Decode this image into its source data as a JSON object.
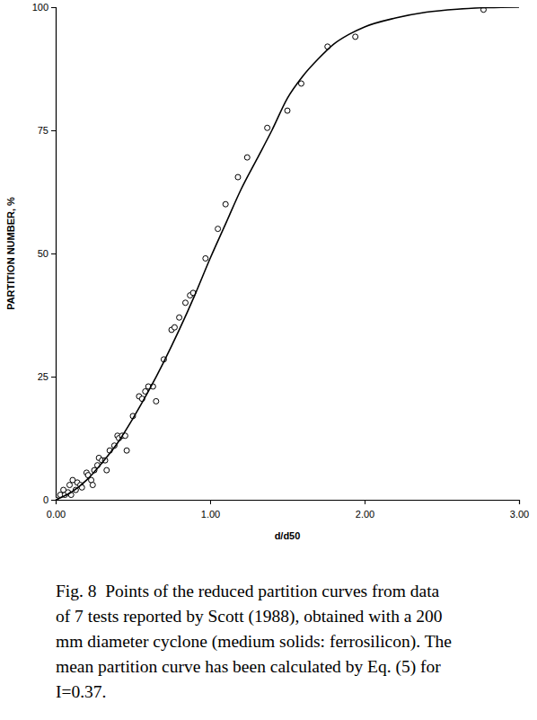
{
  "chart_data": {
    "type": "scatter",
    "x_label": "d/d50",
    "y_label": "PARTITION NUMBER, %",
    "caption": [
      "Fig. 8  Points of the reduced partition curves from data",
      "of 7 tests reported by Scott (1988), obtained with a 200",
      "mm diameter cyclone (medium solids: ferrosilicon). The",
      "mean partition curve has been calculated by Eq. (5) for",
      "I=0.37."
    ],
    "xlim": [
      0,
      3
    ],
    "ylim": [
      0,
      100
    ],
    "xticks": [
      {
        "value": 0,
        "label": "0.00"
      },
      {
        "value": 1,
        "label": "1.00"
      },
      {
        "value": 2,
        "label": "2.00"
      },
      {
        "value": 3,
        "label": "3.00"
      }
    ],
    "yticks": [
      0,
      25,
      50,
      75,
      100
    ],
    "grid": false,
    "series": [
      {
        "type": "scatter",
        "marker": "circle",
        "color": "#000000",
        "x": [
          0.0,
          0.03,
          0.05,
          0.06,
          0.08,
          0.09,
          0.1,
          0.11,
          0.13,
          0.14,
          0.16,
          0.17,
          0.2,
          0.21,
          0.23,
          0.24,
          0.25,
          0.27,
          0.28,
          0.3,
          0.32,
          0.33,
          0.35,
          0.38,
          0.4,
          0.41,
          0.43,
          0.45,
          0.46,
          0.5,
          0.54,
          0.56,
          0.58,
          0.6,
          0.63,
          0.65,
          0.7,
          0.75,
          0.77,
          0.8,
          0.84,
          0.87,
          0.89,
          0.97,
          1.05,
          1.1,
          1.18,
          1.24,
          1.37,
          1.5,
          1.59,
          1.76,
          1.94,
          2.77
        ],
        "values": [
          0,
          1,
          2,
          1,
          1.5,
          3,
          1,
          4,
          2,
          3.5,
          3,
          2.5,
          5.5,
          5,
          4,
          3,
          6,
          7,
          8.5,
          8,
          8,
          6,
          10,
          11,
          13,
          12.5,
          13,
          13,
          10,
          17,
          21,
          20.5,
          22,
          23,
          23,
          20,
          28.5,
          34.5,
          35,
          37,
          40,
          41.5,
          42,
          49,
          55,
          60,
          65.5,
          69.5,
          75.5,
          79,
          84.5,
          92,
          94,
          99.5
        ]
      },
      {
        "type": "line",
        "line_style": "solid",
        "color": "#000000",
        "x": [
          0,
          0.1,
          0.2,
          0.3,
          0.4,
          0.5,
          0.6,
          0.7,
          0.8,
          0.9,
          1.0,
          1.1,
          1.2,
          1.3,
          1.4,
          1.5,
          1.6,
          1.7,
          1.8,
          1.9,
          2.0,
          2.2,
          2.4,
          2.6,
          2.8,
          3.0
        ],
        "values": [
          0,
          1.5,
          4,
          7.5,
          11.5,
          16.5,
          22,
          28,
          34.5,
          41.5,
          49,
          56,
          63,
          69,
          75,
          81.5,
          86,
          89.5,
          92.5,
          94.5,
          96,
          97.8,
          99,
          99.6,
          99.9,
          100
        ]
      }
    ]
  }
}
